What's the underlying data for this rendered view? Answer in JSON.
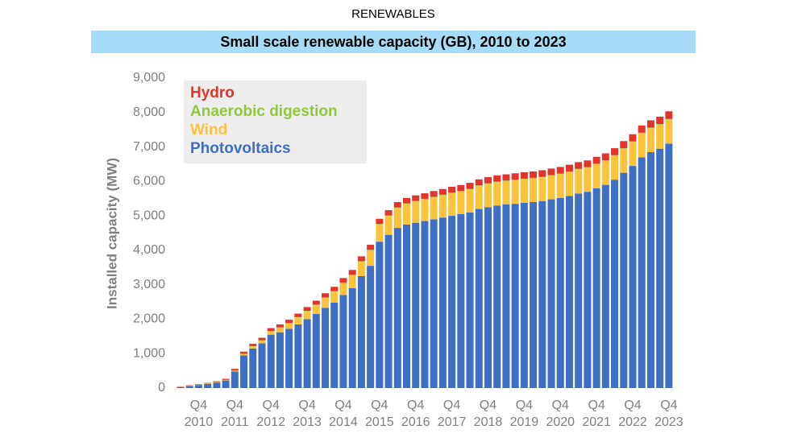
{
  "chart_data": {
    "type": "stacked_bar",
    "supertitle": "RENEWABLES",
    "title": "Small scale renewable capacity (GB), 2010 to 2023",
    "y_label": "Installed capacity (MW)",
    "categories": [
      null,
      null,
      "Q4 2010",
      null,
      null,
      null,
      "Q4 2011",
      null,
      null,
      null,
      "Q4 2012",
      null,
      null,
      null,
      "Q4 2013",
      null,
      null,
      null,
      "Q4 2014",
      null,
      null,
      null,
      "Q4 2015",
      null,
      null,
      null,
      "Q4 2016",
      null,
      null,
      null,
      "Q4 2017",
      null,
      null,
      null,
      "Q4 2018",
      null,
      null,
      null,
      "Q4 2019",
      null,
      null,
      null,
      "Q4 2020",
      null,
      null,
      null,
      "Q4 2021",
      null,
      null,
      null,
      "Q4 2022",
      null,
      null,
      null,
      "Q4 2023"
    ],
    "series": [
      {
        "name": "Hydro",
        "color": "#e2342b",
        "values": [
          10,
          10,
          12,
          15,
          20,
          30,
          50,
          60,
          65,
          70,
          80,
          90,
          95,
          100,
          110,
          115,
          120,
          125,
          130,
          135,
          140,
          145,
          150,
          150,
          155,
          155,
          160,
          160,
          165,
          165,
          170,
          170,
          175,
          175,
          180,
          180,
          180,
          185,
          185,
          185,
          190,
          190,
          190,
          195,
          195,
          195,
          200,
          200,
          200,
          205,
          205,
          210,
          210,
          215,
          220
        ]
      },
      {
        "name": "Anaerobic digestion",
        "color": "#92c83e",
        "values": [
          5,
          5,
          5,
          5,
          5,
          5,
          8,
          8,
          8,
          10,
          10,
          10,
          10,
          12,
          12,
          12,
          12,
          14,
          14,
          14,
          15,
          15,
          15,
          15,
          15,
          15,
          15,
          15,
          15,
          15,
          15,
          15,
          15,
          15,
          15,
          15,
          15,
          15,
          15,
          15,
          15,
          15,
          15,
          15,
          15,
          15,
          15,
          15,
          15,
          15,
          15,
          15,
          15,
          15,
          15
        ]
      },
      {
        "name": "Wind",
        "color": "#fbc33c",
        "values": [
          5,
          5,
          8,
          10,
          12,
          15,
          20,
          40,
          60,
          80,
          100,
          130,
          160,
          200,
          230,
          260,
          290,
          320,
          350,
          380,
          420,
          450,
          500,
          550,
          580,
          600,
          620,
          630,
          640,
          650,
          660,
          660,
          670,
          670,
          680,
          680,
          680,
          685,
          685,
          690,
          690,
          690,
          695,
          695,
          700,
          700,
          700,
          700,
          700,
          700,
          700,
          700,
          700,
          700,
          700
        ]
      },
      {
        "name": "Photovoltaics",
        "color": "#3e6fc5",
        "values": [
          30,
          60,
          90,
          120,
          160,
          220,
          480,
          950,
          1150,
          1300,
          1550,
          1620,
          1720,
          1850,
          2000,
          2150,
          2330,
          2480,
          2700,
          2900,
          3250,
          3550,
          4250,
          4450,
          4650,
          4750,
          4800,
          4850,
          4900,
          4950,
          5000,
          5050,
          5100,
          5200,
          5250,
          5300,
          5330,
          5350,
          5380,
          5400,
          5430,
          5480,
          5520,
          5580,
          5650,
          5700,
          5800,
          5900,
          6050,
          6250,
          6450,
          6700,
          6850,
          6950,
          7100
        ]
      }
    ],
    "stack_order": "bottom_to_top_reversed",
    "ylim": [
      0,
      9000
    ],
    "yticks": [
      0,
      {
        "value": 1000,
        "label": "1,000"
      },
      {
        "value": 2000,
        "label": "2,000"
      },
      {
        "value": 3000,
        "label": "3,000"
      },
      {
        "value": 4000,
        "label": "4,000"
      },
      {
        "value": 5000,
        "label": "5,000"
      },
      {
        "value": 6000,
        "label": "6,000"
      },
      {
        "value": 7000,
        "label": "7,000"
      },
      {
        "value": 8000,
        "label": "8,000"
      },
      {
        "value": 9000,
        "label": "9,000"
      }
    ],
    "legend": "upper left",
    "grid": false
  }
}
